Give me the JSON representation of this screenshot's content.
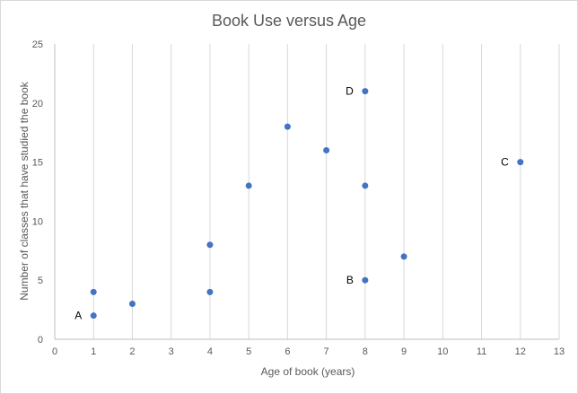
{
  "chart_data": {
    "type": "scatter",
    "title": "Book Use versus Age",
    "xlabel": "Age  of book (years)",
    "ylabel": "Number  of classes that have studied the book",
    "xlim": [
      0,
      13
    ],
    "ylim": [
      0,
      25
    ],
    "xticks": [
      0,
      1,
      2,
      3,
      4,
      5,
      6,
      7,
      8,
      9,
      10,
      11,
      12,
      13
    ],
    "yticks": [
      0,
      5,
      10,
      15,
      20,
      25
    ],
    "grid": "vertical",
    "legend": "none",
    "marker_color": "#4472c4",
    "points": [
      {
        "x": 1,
        "y": 2,
        "label": "A"
      },
      {
        "x": 1,
        "y": 4,
        "label": ""
      },
      {
        "x": 2,
        "y": 3,
        "label": ""
      },
      {
        "x": 4,
        "y": 4,
        "label": ""
      },
      {
        "x": 4,
        "y": 8,
        "label": ""
      },
      {
        "x": 5,
        "y": 13,
        "label": ""
      },
      {
        "x": 6,
        "y": 18,
        "label": ""
      },
      {
        "x": 7,
        "y": 16,
        "label": ""
      },
      {
        "x": 8,
        "y": 21,
        "label": "D"
      },
      {
        "x": 8,
        "y": 13,
        "label": ""
      },
      {
        "x": 8,
        "y": 5,
        "label": "B"
      },
      {
        "x": 9,
        "y": 7,
        "label": ""
      },
      {
        "x": 12,
        "y": 15,
        "label": "C"
      }
    ]
  }
}
